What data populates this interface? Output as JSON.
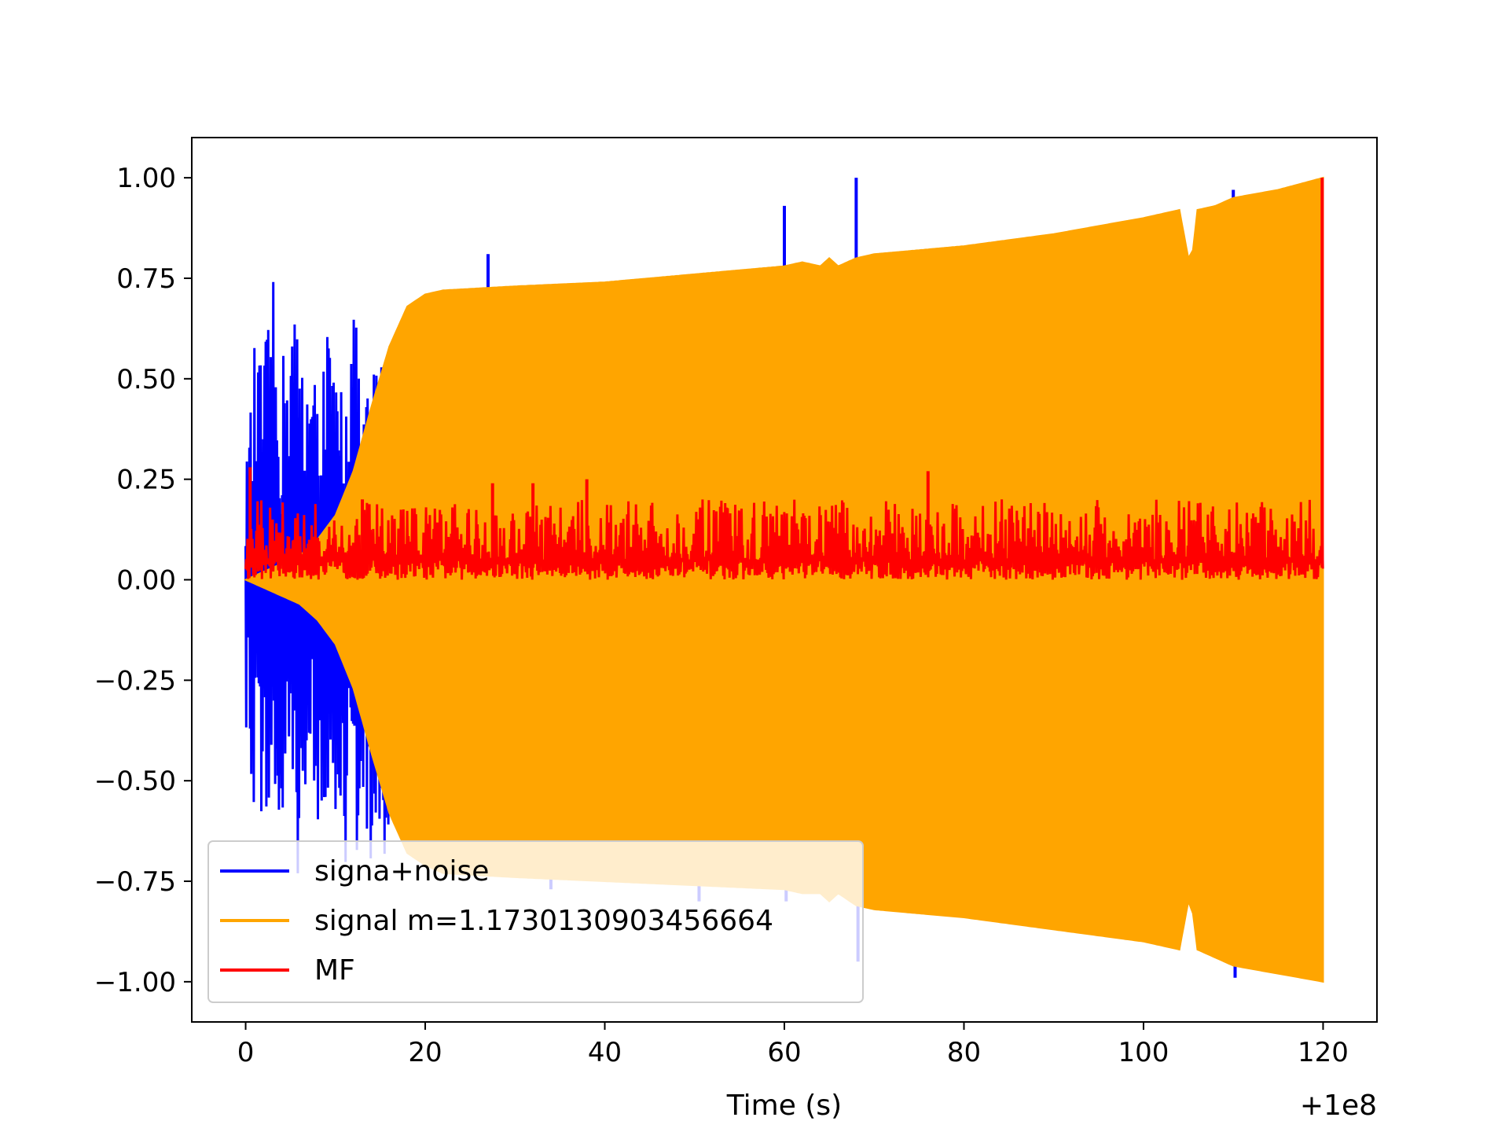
{
  "chart_data": {
    "type": "line",
    "title": "",
    "xlabel": "Time (s)",
    "ylabel": "",
    "x_offset_label": "+1e8",
    "xlim": [
      -6,
      126
    ],
    "ylim": [
      -1.1,
      1.1
    ],
    "x_ticks": [
      0,
      20,
      40,
      60,
      80,
      100,
      120
    ],
    "x_tick_labels": [
      "0",
      "20",
      "40",
      "60",
      "80",
      "100",
      "120"
    ],
    "y_ticks": [
      1.0,
      0.75,
      0.5,
      0.25,
      0.0,
      -0.25,
      -0.5,
      -0.75,
      -1.0
    ],
    "y_tick_labels": [
      "1.00",
      "0.75",
      "0.50",
      "0.25",
      "0.00",
      "−0.25",
      "−0.50",
      "−0.75",
      "−1.00"
    ],
    "grid": false,
    "legend_position": "lower-left",
    "series": [
      {
        "name": "signa+noise",
        "color": "#0000ff",
        "style": "line",
        "envelope_x": [
          0,
          1,
          2,
          3,
          4,
          5,
          6,
          7,
          8,
          9,
          10,
          11,
          12,
          13,
          14,
          15,
          16,
          17,
          18,
          19,
          20
        ],
        "envelope_upper": [
          0.26,
          0.59,
          0.55,
          0.76,
          0.54,
          0.75,
          0.62,
          0.54,
          0.5,
          0.67,
          0.5,
          0.54,
          0.72,
          0.44,
          0.53,
          0.57,
          0.61,
          0.45,
          0.45,
          0.5,
          0.6
        ],
        "envelope_lower": [
          -0.4,
          -0.68,
          -0.58,
          -0.6,
          -0.77,
          -0.66,
          -0.76,
          -0.66,
          -0.6,
          -0.71,
          -0.6,
          -0.74,
          -0.72,
          -0.7,
          -0.76,
          -0.74,
          -0.65,
          -0.66,
          -0.68,
          -0.7,
          -0.72
        ],
        "spikes": [
          {
            "x": 27,
            "y": 0.81
          },
          {
            "x": 34,
            "y": -0.77
          },
          {
            "x": 50.5,
            "y": -0.8
          },
          {
            "x": 60,
            "y": 0.93
          },
          {
            "x": 60.2,
            "y": -0.8
          },
          {
            "x": 68,
            "y": 1.0
          },
          {
            "x": 68.2,
            "y": -0.95
          },
          {
            "x": 110,
            "y": 0.97
          },
          {
            "x": 110.2,
            "y": -0.99
          }
        ]
      },
      {
        "name": "signal m=1.1730130903456664",
        "color": "#ffa500",
        "style": "filled-oscillation-envelope",
        "envelope_x": [
          0,
          2,
          4,
          6,
          8,
          10,
          12,
          14,
          16,
          18,
          20,
          22,
          30,
          40,
          50,
          60,
          62,
          64,
          65,
          66,
          68,
          70,
          80,
          90,
          100,
          104,
          105,
          105.5,
          106,
          108,
          110,
          115,
          120
        ],
        "envelope_upper": [
          0.0,
          0.02,
          0.04,
          0.06,
          0.1,
          0.16,
          0.27,
          0.43,
          0.58,
          0.68,
          0.71,
          0.72,
          0.73,
          0.74,
          0.76,
          0.78,
          0.79,
          0.78,
          0.8,
          0.78,
          0.8,
          0.81,
          0.83,
          0.86,
          0.9,
          0.92,
          0.8,
          0.82,
          0.92,
          0.93,
          0.95,
          0.97,
          1.0
        ],
        "envelope_lower": [
          0.0,
          -0.02,
          -0.04,
          -0.06,
          -0.1,
          -0.16,
          -0.27,
          -0.43,
          -0.58,
          -0.68,
          -0.71,
          -0.73,
          -0.74,
          -0.75,
          -0.76,
          -0.77,
          -0.78,
          -0.78,
          -0.8,
          -0.78,
          -0.81,
          -0.82,
          -0.84,
          -0.87,
          -0.9,
          -0.92,
          -0.8,
          -0.83,
          -0.92,
          -0.94,
          -0.96,
          -0.98,
          -1.0
        ]
      },
      {
        "name": "MF",
        "color": "#ff0000",
        "style": "noisy-band",
        "band_x": [
          0,
          120
        ],
        "band_lower": [
          0.0,
          0.0
        ],
        "band_upper": [
          0.2,
          0.2
        ],
        "peaks": [
          {
            "x": 0.5,
            "y": 0.28
          },
          {
            "x": 13,
            "y": 0.2
          },
          {
            "x": 27.5,
            "y": 0.24
          },
          {
            "x": 32,
            "y": 0.24
          },
          {
            "x": 38,
            "y": 0.25
          },
          {
            "x": 76,
            "y": 0.27
          },
          {
            "x": 119.9,
            "y": 1.0
          }
        ]
      }
    ]
  }
}
